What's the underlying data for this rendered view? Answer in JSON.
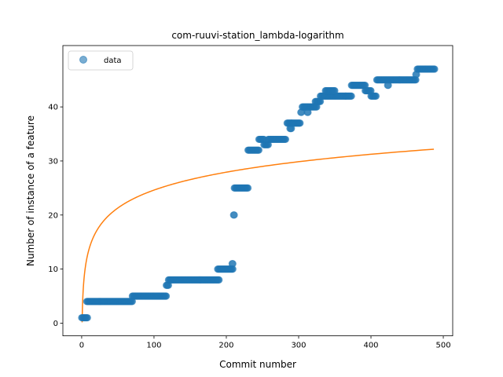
{
  "chart_data": {
    "type": "scatter",
    "title": "com-ruuvi-station_lambda-logarithm",
    "xlabel": "Commit number",
    "ylabel": "Number of instance of a feature",
    "xlim": [
      -26,
      513
    ],
    "ylim": [
      -2.35,
      51.35
    ],
    "xticks": [
      0,
      100,
      200,
      300,
      400,
      500
    ],
    "yticks": [
      0,
      10,
      20,
      30,
      40
    ],
    "grid": false,
    "legend": {
      "position": "top-left",
      "entries": [
        "data"
      ]
    },
    "colors": {
      "data": "#1f77b4",
      "fit": "#ff7f0e"
    },
    "series": [
      {
        "name": "data",
        "type": "scatter",
        "segments": [
          {
            "x_start": 0,
            "x_end": 8,
            "y": 1
          },
          {
            "x_start": 7,
            "x_end": 70,
            "y": 4
          },
          {
            "x_start": 70,
            "x_end": 117,
            "y": 5
          },
          {
            "x_start": 117,
            "x_end": 120,
            "y": 7
          },
          {
            "x_start": 120,
            "x_end": 190,
            "y": 8
          },
          {
            "x_start": 188,
            "x_end": 209,
            "y": 10
          },
          {
            "x_start": 208,
            "x_end": 209,
            "y": 11
          },
          {
            "x_start": 210,
            "x_end": 211,
            "y": 20
          },
          {
            "x_start": 211,
            "x_end": 230,
            "y": 25
          },
          {
            "x_start": 230,
            "x_end": 245,
            "y": 32
          },
          {
            "x_start": 245,
            "x_end": 252,
            "y": 34
          },
          {
            "x_start": 252,
            "x_end": 258,
            "y": 33
          },
          {
            "x_start": 258,
            "x_end": 282,
            "y": 34
          },
          {
            "x_start": 284,
            "x_end": 290,
            "y": 37
          },
          {
            "x_start": 288,
            "x_end": 290,
            "y": 36
          },
          {
            "x_start": 290,
            "x_end": 302,
            "y": 37
          },
          {
            "x_start": 303,
            "x_end": 304,
            "y": 39
          },
          {
            "x_start": 305,
            "x_end": 325,
            "y": 40
          },
          {
            "x_start": 312,
            "x_end": 313,
            "y": 39
          },
          {
            "x_start": 323,
            "x_end": 330,
            "y": 41
          },
          {
            "x_start": 330,
            "x_end": 365,
            "y": 42
          },
          {
            "x_start": 337,
            "x_end": 350,
            "y": 43
          },
          {
            "x_start": 365,
            "x_end": 373,
            "y": 42
          },
          {
            "x_start": 373,
            "x_end": 392,
            "y": 44
          },
          {
            "x_start": 392,
            "x_end": 400,
            "y": 43
          },
          {
            "x_start": 400,
            "x_end": 407,
            "y": 42
          },
          {
            "x_start": 408,
            "x_end": 462,
            "y": 45
          },
          {
            "x_start": 423,
            "x_end": 424,
            "y": 44
          },
          {
            "x_start": 462,
            "x_end": 463,
            "y": 46
          },
          {
            "x_start": 464,
            "x_end": 488,
            "y": 47
          }
        ]
      },
      {
        "type": "line",
        "model": "a + b*ln(x)",
        "a": 2.6,
        "b": 4.78,
        "x_range": [
          0.6,
          487
        ]
      }
    ]
  }
}
